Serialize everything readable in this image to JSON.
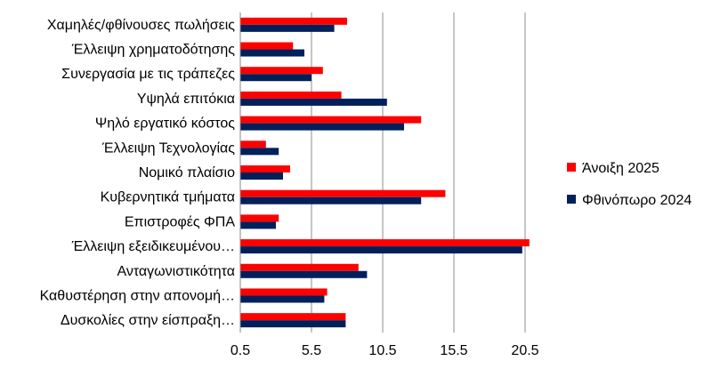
{
  "chart_data": {
    "type": "bar",
    "orientation": "horizontal",
    "categories": [
      "Χαμηλές/φθίνουσες πωλήσεις",
      "Έλλειψη χρηματοδότησης",
      "Συνεργασία με τις τράπεζες",
      "Υψηλά επιτόκια",
      "Ψηλό εργατικό κόστος",
      "Έλλειψη Τεχνολογίας",
      "Νομικό πλαίσιο",
      "Κυβερνητικά τμήματα",
      "Επιστροφές ΦΠΑ",
      "Έλλειψη εξειδικευμένου…",
      "Ανταγωνιστικότητα",
      "Καθυστέρηση στην απονομή…",
      "Δυσκολίες στην είσπραξη…"
    ],
    "series": [
      {
        "name": "Άνοιξη 2025",
        "color": "#ff0000",
        "values": [
          8.0,
          4.2,
          6.3,
          7.6,
          13.2,
          2.3,
          4.0,
          14.9,
          3.2,
          20.8,
          8.8,
          6.6,
          7.9
        ]
      },
      {
        "name": "Φθινόπωρο 2024",
        "color": "#00205b",
        "values": [
          7.1,
          5.0,
          5.5,
          10.8,
          12.0,
          3.2,
          3.5,
          13.2,
          3.0,
          20.3,
          9.4,
          6.4,
          7.9
        ]
      }
    ],
    "xaxis": {
      "min": 0.5,
      "max": 20.5,
      "ticks": [
        "0.5",
        "5.5",
        "10.5",
        "15.5",
        "20.5"
      ]
    },
    "grid": "vertical",
    "legend_position": "right"
  }
}
